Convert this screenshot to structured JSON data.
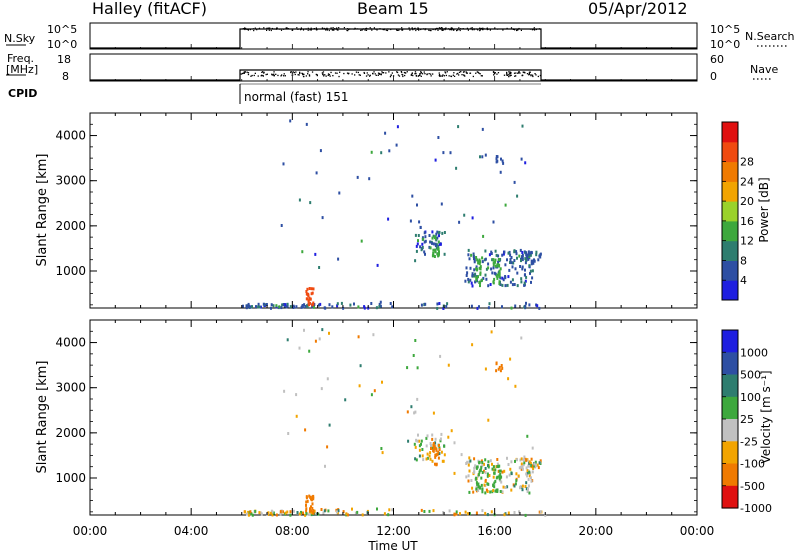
{
  "header": {
    "station": "Halley (fitACF)",
    "beam": "Beam 15",
    "date": "05/Apr/2012"
  },
  "strip_labels": {
    "nsky": "N.Sky",
    "nsky_top": "10^5",
    "nsky_bottom": "10^0",
    "nsearch_top": "10^5",
    "nsearch_bottom": "10^0",
    "nsearch": "N.Search",
    "freq_line1": "Freq.",
    "freq_line2": "[MHz]",
    "freq_top": "18",
    "freq_bottom": "8",
    "nave_top": "60",
    "nave_bottom": "0",
    "nave": "Nave",
    "cpid": "CPID",
    "mode": "normal (fast) 151"
  },
  "chart_data": [
    {
      "type": "heatmap",
      "name": "power-panel",
      "ylabel": "Slant Range [km]",
      "ylim": [
        180,
        4500
      ],
      "yticks": [
        "1000",
        "2000",
        "3000",
        "4000"
      ],
      "colorbar_label": "Power [dB]",
      "colorbar_ticks": [
        "4",
        "8",
        "12",
        "16",
        "20",
        "24",
        "28"
      ],
      "colorbar_colors": [
        "#1f1fe0",
        "#2e4fa3",
        "#2e7d6f",
        "#3da83d",
        "#9ad22a",
        "#f2a400",
        "#f07a00",
        "#f04a10",
        "#e01010"
      ]
    },
    {
      "type": "heatmap",
      "name": "velocity-panel",
      "ylabel": "Slant Range [km]",
      "ylim": [
        180,
        4500
      ],
      "yticks": [
        "1000",
        "2000",
        "3000",
        "4000"
      ],
      "xlabel": "Time UT",
      "xticks": [
        "00:00",
        "04:00",
        "08:00",
        "12:00",
        "16:00",
        "20:00",
        "00:00"
      ],
      "colorbar_label": "Velocity [m s⁻¹]",
      "colorbar_ticks": [
        "1000",
        "500",
        "100",
        "25",
        "-25",
        "-100",
        "-500",
        "-1000"
      ],
      "colorbar_colors": [
        "#1f1fe0",
        "#2e4fa3",
        "#2e7d6f",
        "#3da83d",
        "#c0c0c0",
        "#f2a400",
        "#f07a00",
        "#e01010"
      ]
    }
  ]
}
